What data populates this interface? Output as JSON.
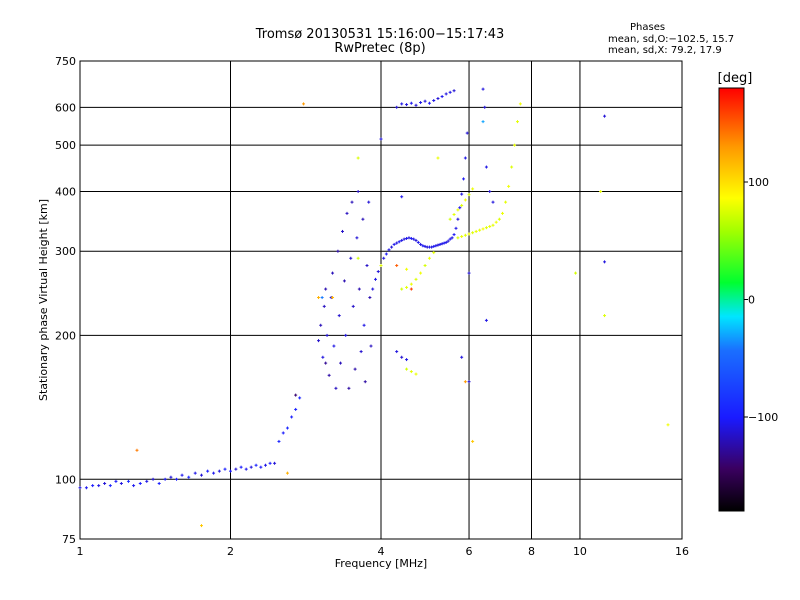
{
  "header": {
    "title": "Tromsø 20130531 15:16:00−15:17:43",
    "subtitle": "RwPretec (8p)"
  },
  "stats": {
    "heading": "Phases",
    "line_o": "mean, sd,O:−102.5, 15.7",
    "line_x": "mean, sd,X:  79.2, 17.9"
  },
  "colorbar": {
    "label": "[deg]",
    "ticks": [
      {
        "value": 100,
        "label": "100"
      },
      {
        "value": 0,
        "label": "0"
      },
      {
        "value": -100,
        "label": "−100"
      }
    ],
    "range": [
      -180,
      180
    ]
  },
  "chart_data": {
    "type": "scatter",
    "xlabel": "Frequency [MHz]",
    "ylabel": "Stationary phase Virtual Height [km]",
    "xscale": "log",
    "yscale": "log",
    "xlim": [
      1,
      16
    ],
    "ylim": [
      75,
      750
    ],
    "xticks": [
      {
        "value": 1,
        "label": "1"
      },
      {
        "value": 2,
        "label": "2"
      },
      {
        "value": 4,
        "label": "4"
      },
      {
        "value": 6,
        "label": "6"
      },
      {
        "value": 8,
        "label": "8"
      },
      {
        "value": 10,
        "label": "10"
      },
      {
        "value": 16,
        "label": "16"
      }
    ],
    "yticks": [
      {
        "value": 75,
        "label": "75"
      },
      {
        "value": 100,
        "label": "100"
      },
      {
        "value": 200,
        "label": "200"
      },
      {
        "value": 300,
        "label": "300"
      },
      {
        "value": 400,
        "label": "400"
      },
      {
        "value": 500,
        "label": "500"
      },
      {
        "value": 600,
        "label": "600"
      },
      {
        "value": 750,
        "label": "750"
      }
    ],
    "grid": true,
    "color_key": "phase (deg)",
    "series": [
      {
        "mode": "O",
        "points": [
          [
            1.0,
            96,
            -110
          ],
          [
            1.03,
            96,
            -105
          ],
          [
            1.06,
            97,
            -100
          ],
          [
            1.09,
            97,
            -108
          ],
          [
            1.12,
            98,
            -112
          ],
          [
            1.15,
            97,
            -95
          ],
          [
            1.18,
            99,
            -102
          ],
          [
            1.21,
            98,
            -110
          ],
          [
            1.25,
            99,
            -90
          ],
          [
            1.28,
            97,
            -105
          ],
          [
            1.32,
            98,
            -100
          ],
          [
            1.36,
            99,
            -108
          ],
          [
            1.4,
            100,
            -112
          ],
          [
            1.44,
            98,
            -98
          ],
          [
            1.48,
            100,
            -104
          ],
          [
            1.52,
            101,
            -110
          ],
          [
            1.56,
            100,
            -100
          ],
          [
            1.6,
            102,
            -106
          ],
          [
            1.65,
            101,
            -95
          ],
          [
            1.7,
            103,
            -108
          ],
          [
            1.75,
            102,
            -112
          ],
          [
            1.8,
            104,
            -100
          ],
          [
            1.85,
            103,
            -106
          ],
          [
            1.9,
            104,
            -110
          ],
          [
            1.95,
            105,
            -98
          ],
          [
            2.0,
            104,
            -104
          ],
          [
            2.05,
            105,
            -112
          ],
          [
            2.1,
            106,
            -100
          ],
          [
            2.15,
            105,
            -106
          ],
          [
            2.2,
            106,
            -110
          ],
          [
            2.25,
            107,
            -95
          ],
          [
            2.3,
            106,
            -102
          ],
          [
            2.35,
            107,
            -108
          ],
          [
            2.4,
            108,
            -100
          ],
          [
            2.45,
            108,
            -112
          ],
          [
            2.5,
            120,
            -95
          ],
          [
            2.55,
            125,
            -100
          ],
          [
            2.6,
            128,
            -92
          ],
          [
            2.65,
            135,
            -98
          ],
          [
            2.7,
            140,
            -96
          ],
          [
            2.75,
            148,
            -94
          ],
          [
            3.0,
            195,
            -115
          ],
          [
            3.03,
            210,
            -120
          ],
          [
            3.06,
            180,
            -110
          ],
          [
            3.08,
            230,
            -118
          ],
          [
            3.1,
            250,
            -122
          ],
          [
            3.12,
            200,
            -112
          ],
          [
            3.15,
            165,
            -125
          ],
          [
            3.18,
            240,
            -116
          ],
          [
            3.2,
            270,
            -120
          ],
          [
            3.22,
            190,
            -108
          ],
          [
            3.25,
            155,
            -118
          ],
          [
            3.28,
            300,
            -124
          ],
          [
            3.3,
            220,
            -114
          ],
          [
            3.32,
            175,
            -120
          ],
          [
            3.35,
            330,
            -116
          ],
          [
            3.38,
            260,
            -122
          ],
          [
            3.4,
            200,
            -110
          ],
          [
            3.42,
            360,
            -118
          ],
          [
            3.45,
            155,
            -126
          ],
          [
            3.48,
            290,
            -114
          ],
          [
            3.5,
            380,
            -120
          ],
          [
            3.52,
            230,
            -116
          ],
          [
            3.55,
            170,
            -124
          ],
          [
            3.58,
            320,
            -112
          ],
          [
            3.6,
            400,
            -118
          ],
          [
            3.62,
            250,
            -122
          ],
          [
            3.65,
            185,
            -114
          ],
          [
            3.68,
            350,
            -120
          ],
          [
            3.7,
            210,
            -108
          ],
          [
            3.72,
            160,
            -126
          ],
          [
            3.75,
            280,
            -116
          ],
          [
            3.78,
            380,
            -112
          ],
          [
            3.8,
            240,
            -122
          ],
          [
            3.82,
            190,
            -118
          ],
          [
            3.85,
            250,
            -110
          ],
          [
            3.9,
            262,
            -108
          ],
          [
            3.95,
            272,
            -112
          ],
          [
            4.0,
            280,
            -106
          ],
          [
            4.05,
            290,
            -110
          ],
          [
            4.1,
            296,
            -104
          ],
          [
            4.15,
            302,
            -108
          ],
          [
            4.2,
            306,
            -112
          ],
          [
            4.25,
            310,
            -106
          ],
          [
            4.3,
            312,
            -110
          ],
          [
            4.35,
            314,
            -104
          ],
          [
            4.4,
            316,
            -108
          ],
          [
            4.45,
            318,
            -112
          ],
          [
            4.5,
            319,
            -106
          ],
          [
            4.55,
            320,
            -110
          ],
          [
            4.6,
            319,
            -104
          ],
          [
            4.65,
            318,
            -108
          ],
          [
            4.7,
            316,
            -112
          ],
          [
            4.75,
            313,
            -106
          ],
          [
            4.8,
            310,
            -110
          ],
          [
            4.85,
            308,
            -104
          ],
          [
            4.9,
            307,
            -108
          ],
          [
            4.95,
            306,
            -112
          ],
          [
            5.0,
            306,
            -106
          ],
          [
            5.05,
            306,
            -110
          ],
          [
            5.1,
            307,
            -104
          ],
          [
            5.15,
            308,
            -108
          ],
          [
            5.2,
            309,
            -112
          ],
          [
            5.25,
            310,
            -106
          ],
          [
            5.3,
            311,
            -110
          ],
          [
            5.35,
            312,
            -104
          ],
          [
            5.4,
            313,
            -108
          ],
          [
            5.45,
            315,
            -112
          ],
          [
            5.5,
            318,
            -106
          ],
          [
            5.55,
            320,
            -110
          ],
          [
            5.6,
            325,
            -104
          ],
          [
            5.65,
            335,
            -108
          ],
          [
            5.7,
            350,
            -112
          ],
          [
            5.75,
            370,
            -106
          ],
          [
            5.8,
            395,
            -110
          ],
          [
            5.85,
            425,
            -104
          ],
          [
            5.9,
            470,
            -108
          ],
          [
            5.95,
            530,
            -112
          ],
          [
            4.0,
            515,
            -110
          ],
          [
            4.3,
            600,
            -112
          ],
          [
            4.4,
            610,
            -108
          ],
          [
            4.5,
            608,
            -110
          ],
          [
            4.6,
            612,
            -106
          ],
          [
            4.7,
            606,
            -112
          ],
          [
            4.8,
            614,
            -108
          ],
          [
            4.9,
            618,
            -110
          ],
          [
            5.0,
            612,
            -104
          ],
          [
            5.1,
            620,
            -108
          ],
          [
            5.2,
            626,
            -112
          ],
          [
            5.3,
            632,
            -106
          ],
          [
            5.4,
            640,
            -110
          ],
          [
            5.5,
            645,
            -108
          ],
          [
            5.6,
            650,
            -112
          ],
          [
            4.3,
            185,
            -110
          ],
          [
            4.4,
            180,
            -114
          ],
          [
            4.5,
            178,
            -108
          ],
          [
            4.4,
            390,
            -106
          ],
          [
            6.4,
            655,
            -110
          ],
          [
            6.45,
            600,
            -112
          ],
          [
            6.5,
            450,
            -108
          ],
          [
            6.6,
            400,
            -114
          ],
          [
            6.7,
            380,
            -110
          ],
          [
            6.5,
            215,
            -108
          ],
          [
            6.0,
            270,
            -112
          ],
          [
            5.8,
            180,
            -110
          ],
          [
            6.0,
            160,
            -114
          ],
          [
            11.2,
            285,
            -110
          ],
          [
            11.2,
            575,
            -112
          ]
        ]
      },
      {
        "mode": "X",
        "points": [
          [
            5.7,
            320,
            75
          ],
          [
            5.8,
            322,
            80
          ],
          [
            5.9,
            324,
            78
          ],
          [
            6.0,
            326,
            82
          ],
          [
            6.1,
            328,
            76
          ],
          [
            6.2,
            330,
            80
          ],
          [
            6.3,
            332,
            78
          ],
          [
            6.4,
            334,
            84
          ],
          [
            6.5,
            336,
            76
          ],
          [
            6.6,
            338,
            80
          ],
          [
            6.7,
            340,
            78
          ],
          [
            6.8,
            345,
            82
          ],
          [
            6.9,
            350,
            76
          ],
          [
            7.0,
            360,
            80
          ],
          [
            7.1,
            380,
            78
          ],
          [
            7.2,
            410,
            82
          ],
          [
            7.3,
            450,
            76
          ],
          [
            7.4,
            500,
            80
          ],
          [
            7.5,
            560,
            78
          ],
          [
            7.6,
            610,
            82
          ],
          [
            5.5,
            350,
            72
          ],
          [
            5.6,
            358,
            78
          ],
          [
            5.7,
            366,
            80
          ],
          [
            5.8,
            374,
            76
          ],
          [
            5.9,
            384,
            82
          ],
          [
            6.0,
            394,
            74
          ],
          [
            6.1,
            405,
            80
          ],
          [
            4.4,
            250,
            72
          ],
          [
            4.5,
            252,
            78
          ],
          [
            4.6,
            256,
            80
          ],
          [
            4.7,
            262,
            76
          ],
          [
            4.8,
            270,
            82
          ],
          [
            4.9,
            280,
            74
          ],
          [
            5.0,
            290,
            80
          ],
          [
            5.1,
            298,
            78
          ],
          [
            4.5,
            170,
            72
          ],
          [
            4.6,
            168,
            78
          ],
          [
            4.7,
            166,
            80
          ],
          [
            3.6,
            470,
            75
          ],
          [
            5.2,
            470,
            80
          ],
          [
            3.6,
            290,
            72
          ],
          [
            4.0,
            280,
            78
          ],
          [
            4.5,
            275,
            82
          ],
          [
            11.0,
            400,
            80
          ],
          [
            11.2,
            220,
            76
          ],
          [
            15.0,
            130,
            82
          ],
          [
            9.8,
            270,
            74
          ]
        ]
      },
      {
        "mode": "other",
        "points": [
          [
            2.8,
            610,
            130
          ],
          [
            1.3,
            115,
            140
          ],
          [
            1.75,
            80,
            110
          ],
          [
            2.6,
            103,
            120
          ],
          [
            4.3,
            280,
            150
          ],
          [
            4.6,
            250,
            160
          ],
          [
            3.2,
            240,
            120
          ],
          [
            5.9,
            160,
            130
          ],
          [
            6.1,
            120,
            110
          ],
          [
            3.05,
            240,
            -40
          ],
          [
            3.1,
            175,
            -130
          ],
          [
            2.7,
            150,
            -140
          ],
          [
            6.4,
            560,
            -30
          ],
          [
            3.0,
            240,
            120
          ]
        ]
      }
    ]
  }
}
